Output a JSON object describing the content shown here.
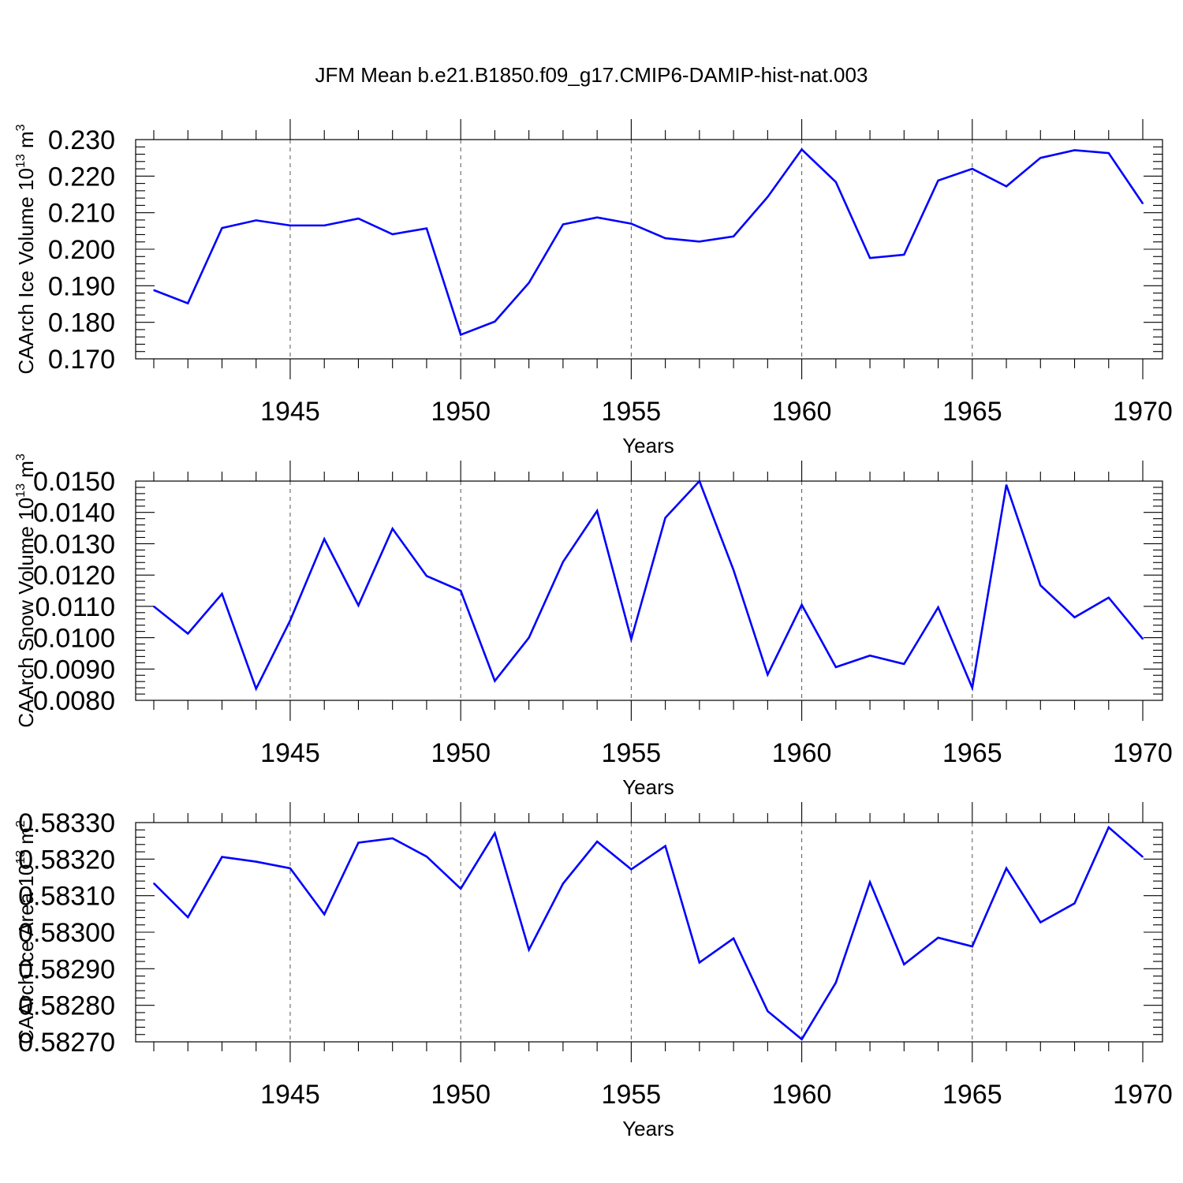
{
  "title": "JFM Mean b.e21.B1850.f09_g17.CMIP6-DAMIP-hist-nat.003",
  "chart_data": [
    {
      "type": "line",
      "ylabel": "CAArch Ice Volume 10",
      "ylabel_exp": "13",
      "ylabel_unit": " m",
      "ylabel_unit_exp": "3",
      "xlabel": "Years",
      "xlim": [
        1941,
        1970
      ],
      "ylim": [
        0.17,
        0.23
      ],
      "xticks": [
        "1945",
        "1950",
        "1955",
        "1960",
        "1965",
        "1970"
      ],
      "yticks": [
        "0.170",
        "0.180",
        "0.190",
        "0.200",
        "0.210",
        "0.220",
        "0.230"
      ],
      "grid_x": [
        1945,
        1950,
        1955,
        1960,
        1965
      ],
      "color": "#0000ff",
      "x": [
        1941,
        1942,
        1943,
        1944,
        1945,
        1946,
        1947,
        1948,
        1949,
        1950,
        1951,
        1952,
        1953,
        1954,
        1955,
        1956,
        1957,
        1958,
        1959,
        1960,
        1961,
        1962,
        1963,
        1964,
        1965,
        1966,
        1967,
        1968,
        1969,
        1970
      ],
      "values": [
        0.1888,
        0.1852,
        0.2058,
        0.2079,
        0.2065,
        0.2065,
        0.2084,
        0.2041,
        0.2057,
        0.1766,
        0.1802,
        0.1908,
        0.2068,
        0.2087,
        0.207,
        0.203,
        0.2021,
        0.2035,
        0.2143,
        0.2273,
        0.2184,
        0.1976,
        0.1985,
        0.2188,
        0.222,
        0.2172,
        0.225,
        0.2271,
        0.2263,
        0.2125
      ]
    },
    {
      "type": "line",
      "ylabel": "CAArch Snow Volume 10",
      "ylabel_exp": "13",
      "ylabel_unit": " m",
      "ylabel_unit_exp": "3",
      "xlabel": "Years",
      "xlim": [
        1941,
        1970
      ],
      "ylim": [
        0.008,
        0.015
      ],
      "xticks": [
        "1945",
        "1950",
        "1955",
        "1960",
        "1965",
        "1970"
      ],
      "yticks": [
        "0.0080",
        "0.0090",
        "0.0100",
        "0.0110",
        "0.0120",
        "0.0130",
        "0.0140",
        "0.0150"
      ],
      "grid_x": [
        1945,
        1950,
        1955,
        1960,
        1965
      ],
      "color": "#0000ff",
      "x": [
        1941,
        1942,
        1943,
        1944,
        1945,
        1946,
        1947,
        1948,
        1949,
        1950,
        1951,
        1952,
        1953,
        1954,
        1955,
        1956,
        1957,
        1958,
        1959,
        1960,
        1961,
        1962,
        1963,
        1964,
        1965,
        1966,
        1967,
        1968,
        1969,
        1970
      ],
      "values": [
        0.011,
        0.01013,
        0.0114,
        0.00837,
        0.01055,
        0.01315,
        0.01103,
        0.01348,
        0.01197,
        0.0115,
        0.00862,
        0.01,
        0.01242,
        0.01405,
        0.00995,
        0.01383,
        0.015,
        0.01216,
        0.00882,
        0.01105,
        0.00906,
        0.00943,
        0.00916,
        0.01097,
        0.0084,
        0.01488,
        0.01167,
        0.01065,
        0.01128,
        0.00996
      ]
    },
    {
      "type": "line",
      "ylabel": "CAArch Ice Area 10",
      "ylabel_exp": "13",
      "ylabel_unit": " m",
      "ylabel_unit_exp": "2",
      "xlabel": "Years",
      "xlim": [
        1941,
        1970
      ],
      "ylim": [
        0.5827,
        0.5833
      ],
      "xticks": [
        "1945",
        "1950",
        "1955",
        "1960",
        "1965",
        "1970"
      ],
      "yticks": [
        "0.58270",
        "0.58280",
        "0.58290",
        "0.58300",
        "0.58310",
        "0.58320",
        "0.58330"
      ],
      "grid_x": [
        1945,
        1950,
        1955,
        1960,
        1965
      ],
      "color": "#0000ff",
      "x": [
        1941,
        1942,
        1943,
        1944,
        1945,
        1946,
        1947,
        1948,
        1949,
        1950,
        1951,
        1952,
        1953,
        1954,
        1955,
        1956,
        1957,
        1958,
        1959,
        1960,
        1961,
        1962,
        1963,
        1964,
        1965,
        1966,
        1967,
        1968,
        1969,
        1970
      ],
      "values": [
        0.583134,
        0.583041,
        0.583206,
        0.583193,
        0.583175,
        0.583049,
        0.583245,
        0.583257,
        0.583207,
        0.583119,
        0.583271,
        0.582952,
        0.583133,
        0.583248,
        0.583172,
        0.583236,
        0.582917,
        0.582983,
        0.582784,
        0.582707,
        0.582862,
        0.583137,
        0.582912,
        0.582985,
        0.582961,
        0.583175,
        0.583027,
        0.583079,
        0.583287,
        0.583206
      ]
    }
  ]
}
